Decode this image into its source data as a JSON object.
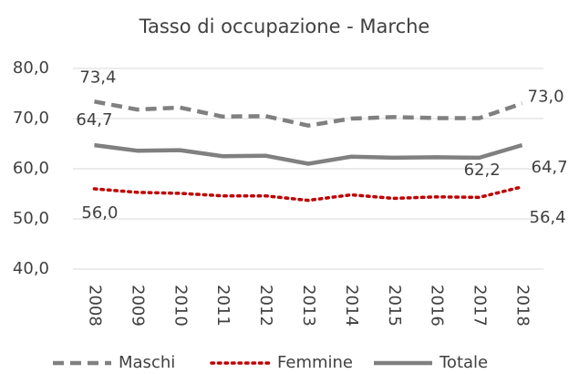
{
  "chart_data": {
    "type": "line",
    "title": "Tasso di occupazione - Marche",
    "categories": [
      "2008",
      "2009",
      "2010",
      "2011",
      "2012",
      "2013",
      "2014",
      "2015",
      "2016",
      "2017",
      "2018"
    ],
    "series": [
      {
        "name": "Maschi",
        "color": "#808080",
        "dash": "dashed",
        "values": [
          73.4,
          71.8,
          72.2,
          70.4,
          70.5,
          68.6,
          70.0,
          70.3,
          70.1,
          70.1,
          73.0
        ],
        "value_labels": [
          "73,4",
          null,
          null,
          null,
          null,
          null,
          null,
          null,
          null,
          null,
          "73,0"
        ]
      },
      {
        "name": "Femmine",
        "color": "#c00000",
        "dash": "dotted",
        "values": [
          56.0,
          55.3,
          55.1,
          54.6,
          54.6,
          53.7,
          54.8,
          54.1,
          54.4,
          54.3,
          56.4
        ],
        "value_labels": [
          "56,0",
          null,
          null,
          null,
          null,
          null,
          null,
          null,
          null,
          null,
          "56,4"
        ]
      },
      {
        "name": "Totale",
        "color": "#808080",
        "dash": "solid",
        "values": [
          64.7,
          63.6,
          63.7,
          62.5,
          62.6,
          61.0,
          62.4,
          62.2,
          62.3,
          62.2,
          64.7
        ],
        "value_labels": [
          "64,7",
          null,
          null,
          null,
          null,
          null,
          null,
          null,
          null,
          "62,2",
          "64,7"
        ]
      }
    ],
    "ylim": [
      40,
      80
    ],
    "yticks": [
      {
        "value": 40,
        "label": "40,0"
      },
      {
        "value": 50,
        "label": "50,0"
      },
      {
        "value": 60,
        "label": "60,0"
      },
      {
        "value": 70,
        "label": "70,0"
      },
      {
        "value": 80,
        "label": "80,0"
      }
    ],
    "grid": true,
    "legend": "bottom"
  }
}
